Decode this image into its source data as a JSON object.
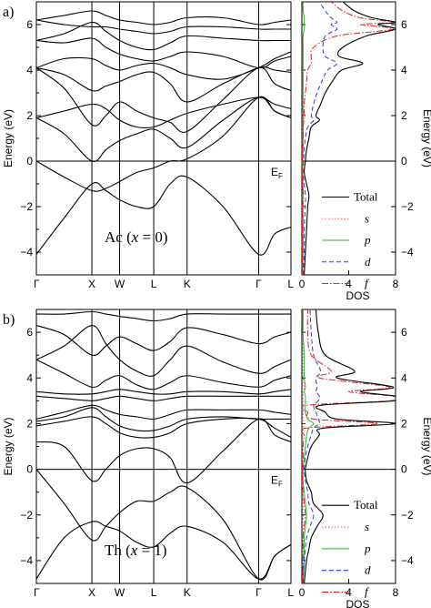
{
  "chart_data": [
    {
      "type": "line",
      "panel_label": "a)",
      "material_label": "Ac (x = 0)",
      "material_label_parts": [
        "Ac (",
        "x",
        " = 0)"
      ],
      "fermi_label": "E",
      "fermi_sub": "F",
      "ylabel": "Energy (eV)",
      "ylim": [
        -5,
        7
      ],
      "yticks": [
        -4,
        -2,
        0,
        2,
        4,
        6
      ],
      "high_symmetry_points": [
        {
          "label": "Γ",
          "k": 0.0
        },
        {
          "label": "X",
          "k": 0.218
        },
        {
          "label": "W",
          "k": 0.327
        },
        {
          "label": "L",
          "k": 0.461
        },
        {
          "label": "K",
          "k": 0.592
        },
        {
          "label": "Γ",
          "k": 0.873
        },
        {
          "label": "L",
          "k": 1.0
        }
      ],
      "band_knots_k": [
        0.0,
        0.109,
        0.218,
        0.273,
        0.327,
        0.394,
        0.461,
        0.526,
        0.592,
        0.733,
        0.873,
        0.936,
        1.0
      ],
      "bands": [
        {
          "values": [
            -4.1,
            -2.5,
            -1.0,
            -1.3,
            -1.7,
            -2.0,
            -2.0,
            -1.0,
            -0.7,
            -2.0,
            -4.1,
            -3.2,
            -2.9
          ]
        },
        {
          "values": [
            0.0,
            -0.7,
            -1.3,
            -1.2,
            -0.9,
            -0.5,
            -0.3,
            0.0,
            0.1,
            1.1,
            2.8,
            2.2,
            1.9
          ]
        },
        {
          "values": [
            1.9,
            1.2,
            0.0,
            0.5,
            0.9,
            1.2,
            1.4,
            1.0,
            0.6,
            1.8,
            2.8,
            2.2,
            1.9
          ]
        },
        {
          "values": [
            1.9,
            2.2,
            2.5,
            2.3,
            1.8,
            1.5,
            1.5,
            1.8,
            2.1,
            2.5,
            2.8,
            2.5,
            2.3
          ]
        },
        {
          "values": [
            4.1,
            3.2,
            1.6,
            2.0,
            2.6,
            2.2,
            1.9,
            1.7,
            1.3,
            2.7,
            4.1,
            3.4,
            3.1
          ]
        },
        {
          "values": [
            4.1,
            3.8,
            3.1,
            3.3,
            3.5,
            3.8,
            3.9,
            3.4,
            2.6,
            3.4,
            4.1,
            4.0,
            3.9
          ]
        },
        {
          "values": [
            4.1,
            4.5,
            4.5,
            4.2,
            4.0,
            4.2,
            4.3,
            4.1,
            3.8,
            3.6,
            4.1,
            4.5,
            4.8
          ]
        },
        {
          "values": [
            5.3,
            5.2,
            5.4,
            5.0,
            4.7,
            4.5,
            4.4,
            4.6,
            4.8,
            4.6,
            4.1,
            4.4,
            4.6
          ]
        },
        {
          "values": [
            5.3,
            5.6,
            6.1,
            5.7,
            5.3,
            5.0,
            4.9,
            5.2,
            5.5,
            5.4,
            5.3,
            5.3,
            5.3
          ]
        },
        {
          "values": [
            6.2,
            6.0,
            5.9,
            5.9,
            5.8,
            5.7,
            5.6,
            5.7,
            5.9,
            5.9,
            5.8,
            5.8,
            5.8
          ]
        },
        {
          "values": [
            6.2,
            6.4,
            6.6,
            6.4,
            6.2,
            6.1,
            6.0,
            6.1,
            6.3,
            6.3,
            6.0,
            6.1,
            6.2
          ]
        }
      ],
      "dos": {
        "xlabel": "DOS",
        "xlim": [
          0,
          8
        ],
        "xticks": [
          0,
          4,
          8
        ],
        "energy": [
          -5,
          -4,
          -3,
          -2,
          -1.5,
          -1,
          -0.5,
          0,
          0.5,
          1,
          1.5,
          1.8,
          2,
          2.5,
          3,
          3.5,
          4,
          4.3,
          4.6,
          5,
          5.5,
          5.8,
          6,
          6.1,
          6.3,
          6.6,
          7
        ],
        "series": [
          {
            "name": "Total",
            "values": [
              0.2,
              0.3,
              0.4,
              0.5,
              0.6,
              0.4,
              0.2,
              0.3,
              0.4,
              0.6,
              0.8,
              1.5,
              1.2,
              1.6,
              2.0,
              2.6,
              3.4,
              5.2,
              3.2,
              3.5,
              5.5,
              8.0,
              6.5,
              8.0,
              6.0,
              4.5,
              3.5
            ]
          },
          {
            "name": "s",
            "values": [
              0.05,
              0.05,
              0.05,
              0.05,
              0.05,
              0.05,
              0.03,
              0.05,
              0.05,
              0.05,
              0.05,
              0.1,
              0.1,
              0.1,
              0.1,
              0.1,
              0.1,
              0.1,
              0.1,
              0.1,
              0.1,
              0.2,
              0.2,
              0.2,
              0.2,
              0.1,
              0.1
            ]
          },
          {
            "name": "p",
            "values": [
              0.05,
              0.1,
              0.1,
              0.1,
              0.1,
              0.1,
              0.05,
              0.05,
              0.1,
              0.1,
              0.1,
              0.1,
              0.1,
              0.1,
              0.1,
              0.1,
              0.1,
              0.1,
              0.1,
              0.1,
              0.1,
              0.2,
              0.2,
              0.2,
              0.2,
              0.1,
              0.1
            ]
          },
          {
            "name": "d",
            "values": [
              0.1,
              0.2,
              0.2,
              0.3,
              0.3,
              0.2,
              0.1,
              0.15,
              0.2,
              0.3,
              0.5,
              1.0,
              0.8,
              1.0,
              1.3,
              1.7,
              2.2,
              3.0,
              2.0,
              1.8,
              2.0,
              3.0,
              2.5,
              3.0,
              2.5,
              2.0,
              1.5
            ]
          },
          {
            "name": "f",
            "values": [
              0.05,
              0.05,
              0.05,
              0.05,
              0.1,
              0.05,
              0.05,
              0.05,
              0.05,
              0.1,
              0.1,
              0.2,
              0.2,
              0.2,
              0.3,
              0.4,
              0.5,
              0.8,
              0.8,
              1.0,
              3.0,
              7.8,
              5.0,
              7.8,
              5.0,
              3.5,
              2.5
            ]
          }
        ]
      }
    },
    {
      "type": "line",
      "panel_label": "b)",
      "material_label": "Th (x = 1)",
      "material_label_parts": [
        "Th (",
        "x",
        " = 1)"
      ],
      "fermi_label": "E",
      "fermi_sub": "F",
      "ylabel": "Energy (eV)",
      "ylim": [
        -5,
        7
      ],
      "yticks": [
        -4,
        -2,
        0,
        2,
        4,
        6
      ],
      "high_symmetry_points": [
        {
          "label": "Γ",
          "k": 0.0
        },
        {
          "label": "X",
          "k": 0.218
        },
        {
          "label": "W",
          "k": 0.327
        },
        {
          "label": "L",
          "k": 0.461
        },
        {
          "label": "K",
          "k": 0.592
        },
        {
          "label": "Γ",
          "k": 0.873
        },
        {
          "label": "L",
          "k": 1.0
        }
      ],
      "band_knots_k": [
        0.0,
        0.109,
        0.218,
        0.273,
        0.327,
        0.394,
        0.461,
        0.526,
        0.592,
        0.733,
        0.873,
        0.936,
        1.0
      ],
      "bands": [
        {
          "values": [
            -4.8,
            -3.0,
            -2.3,
            -2.5,
            -2.7,
            -3.2,
            -3.4,
            -2.8,
            -2.5,
            -3.2,
            -4.8,
            -3.8,
            -3.3
          ]
        },
        {
          "values": [
            0.0,
            -1.5,
            -3.1,
            -2.5,
            -1.9,
            -1.4,
            -1.4,
            -1.0,
            -0.8,
            -2.2,
            -4.8,
            -3.8,
            -3.3
          ]
        },
        {
          "values": [
            1.2,
            1.0,
            -0.5,
            0.0,
            0.6,
            0.9,
            0.9,
            0.5,
            -0.6,
            0.8,
            2.2,
            1.5,
            1.2
          ]
        },
        {
          "values": [
            1.9,
            2.1,
            2.3,
            2.0,
            1.6,
            1.4,
            1.4,
            1.6,
            2.0,
            2.2,
            2.2,
            1.8,
            1.4
          ]
        },
        {
          "values": [
            2.1,
            2.3,
            2.7,
            2.3,
            1.9,
            1.7,
            1.7,
            1.9,
            2.2,
            2.3,
            2.2,
            2.2,
            2.2
          ]
        },
        {
          "values": [
            2.2,
            2.5,
            2.8,
            2.6,
            2.4,
            2.3,
            2.2,
            2.4,
            2.6,
            2.6,
            2.6,
            2.5,
            2.4
          ]
        },
        {
          "values": [
            3.2,
            3.1,
            3.0,
            3.1,
            3.2,
            3.1,
            3.0,
            3.1,
            3.2,
            3.2,
            3.2,
            3.2,
            3.2
          ]
        },
        {
          "values": [
            3.4,
            3.3,
            3.3,
            3.4,
            3.5,
            3.4,
            3.3,
            3.3,
            3.4,
            3.4,
            3.3,
            3.4,
            3.5
          ]
        },
        {
          "values": [
            4.8,
            4.2,
            3.6,
            3.9,
            4.1,
            3.7,
            3.5,
            3.8,
            4.1,
            3.8,
            3.6,
            3.9,
            4.1
          ]
        },
        {
          "values": [
            4.8,
            5.4,
            6.3,
            5.5,
            4.8,
            4.3,
            4.1,
            4.8,
            5.4,
            4.7,
            4.2,
            4.5,
            4.8
          ]
        },
        {
          "values": [
            6.3,
            5.9,
            5.0,
            5.4,
            5.8,
            5.5,
            5.2,
            5.6,
            6.2,
            5.9,
            5.5,
            5.8,
            6.0
          ]
        },
        {
          "values": [
            6.8,
            6.8,
            6.9,
            6.8,
            6.7,
            6.6,
            6.5,
            6.6,
            6.8,
            6.8,
            6.8,
            6.8,
            6.8
          ]
        }
      ],
      "dos": {
        "xlabel": "DOS",
        "xlim": [
          0,
          8
        ],
        "xticks": [
          0,
          4,
          8
        ],
        "energy": [
          -5,
          -4,
          -3.5,
          -3,
          -2.5,
          -2,
          -1.5,
          -1,
          -0.5,
          0,
          0.5,
          1,
          1.5,
          1.8,
          2,
          2.2,
          2.5,
          2.8,
          3,
          3.2,
          3.4,
          3.6,
          4,
          4.3,
          5,
          6,
          7
        ],
        "series": [
          {
            "name": "Total",
            "values": [
              0.2,
              0.4,
              0.6,
              0.8,
              1.3,
              1.8,
              1.0,
              0.8,
              0.4,
              0.3,
              0.5,
              0.8,
              1.5,
              1.8,
              8.0,
              3.0,
              2.0,
              1.6,
              8.0,
              8.0,
              5.0,
              7.8,
              3.0,
              4.5,
              2.0,
              1.4,
              1.2
            ]
          },
          {
            "name": "s",
            "values": [
              0.05,
              0.1,
              0.1,
              0.1,
              0.1,
              0.1,
              0.1,
              0.05,
              0.05,
              0.05,
              0.05,
              0.05,
              0.05,
              0.1,
              0.2,
              0.1,
              0.1,
              0.1,
              0.1,
              0.1,
              0.1,
              0.2,
              0.1,
              0.1,
              0.1,
              0.1,
              0.1
            ]
          },
          {
            "name": "p",
            "values": [
              0.1,
              0.2,
              0.2,
              0.2,
              0.3,
              0.4,
              0.3,
              0.2,
              0.1,
              0.1,
              0.2,
              0.3,
              0.4,
              0.6,
              1.0,
              0.5,
              0.3,
              0.3,
              0.3,
              0.3,
              0.2,
              0.3,
              0.2,
              0.2,
              0.2,
              0.1,
              0.1
            ]
          },
          {
            "name": "d",
            "values": [
              0.1,
              0.2,
              0.3,
              0.4,
              0.7,
              1.0,
              0.6,
              0.5,
              0.3,
              0.2,
              0.3,
              0.5,
              0.8,
              1.0,
              1.5,
              1.4,
              1.2,
              1.0,
              1.4,
              1.5,
              1.2,
              1.3,
              1.2,
              1.6,
              1.0,
              0.8,
              0.7
            ]
          },
          {
            "name": "f",
            "values": [
              0.05,
              0.1,
              0.1,
              0.1,
              0.2,
              0.3,
              0.2,
              0.1,
              0.05,
              0.05,
              0.1,
              0.1,
              0.2,
              0.3,
              6.5,
              1.0,
              0.5,
              0.4,
              7.5,
              7.8,
              4.0,
              7.5,
              1.5,
              2.5,
              0.8,
              0.5,
              0.5
            ]
          }
        ]
      }
    }
  ],
  "series_colors": {
    "Total": "#000000",
    "s": "#ff5a5a",
    "p": "#2bb52b",
    "d": "#2a3fd6",
    "f": "#e02020"
  },
  "series_dash": {
    "Total": "",
    "s": "1.5,2",
    "p": "",
    "d": "5,3",
    "f": "7,2,1.5,2"
  }
}
